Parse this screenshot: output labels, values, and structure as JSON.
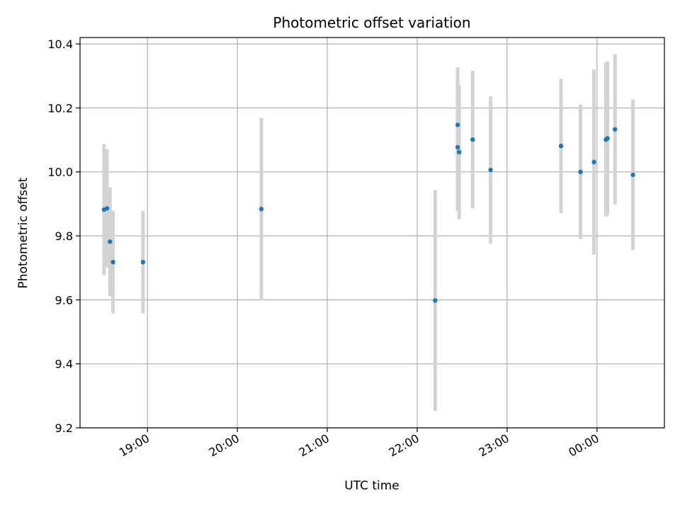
{
  "chart_data": {
    "type": "scatter",
    "title": "Photometric offset variation",
    "xlabel": "UTC time",
    "ylabel": "Photometric offset",
    "x_axis_type": "time",
    "xlim": [
      "18:15",
      "00:45"
    ],
    "ylim": [
      9.2,
      10.42
    ],
    "x_ticks": [
      "19:00",
      "20:00",
      "21:00",
      "22:00",
      "23:00",
      "00:00"
    ],
    "y_ticks": [
      9.2,
      9.4,
      9.6,
      9.8,
      10.0,
      10.2,
      10.4
    ],
    "y_tick_labels": [
      "9.2",
      "9.4",
      "9.6",
      "9.8",
      "10.0",
      "10.2",
      "10.4"
    ],
    "grid": true,
    "point_color": "#1f77b4",
    "errorbar_color": "#d3d3d3",
    "points": [
      {
        "x": "18:31",
        "y": 9.882,
        "err": 0.205
      },
      {
        "x": "18:33",
        "y": 9.886,
        "err": 0.185
      },
      {
        "x": "18:35",
        "y": 9.782,
        "err": 0.17
      },
      {
        "x": "18:37",
        "y": 9.718,
        "err": 0.16
      },
      {
        "x": "18:57",
        "y": 9.718,
        "err": 0.16
      },
      {
        "x": "20:16",
        "y": 9.884,
        "err": 0.285
      },
      {
        "x": "22:12",
        "y": 9.598,
        "err": 0.345
      },
      {
        "x": "22:27",
        "y": 10.147,
        "err": 0.18
      },
      {
        "x": "22:27",
        "y": 10.077,
        "err": 0.2
      },
      {
        "x": "22:28",
        "y": 10.062,
        "err": 0.21
      },
      {
        "x": "22:37",
        "y": 10.101,
        "err": 0.215
      },
      {
        "x": "22:49",
        "y": 10.006,
        "err": 0.23
      },
      {
        "x": "23:36",
        "y": 10.081,
        "err": 0.21
      },
      {
        "x": "23:49",
        "y": 10.0,
        "err": 0.21
      },
      {
        "x": "23:58",
        "y": 10.031,
        "err": 0.29
      },
      {
        "x": "00:06",
        "y": 10.101,
        "err": 0.24
      },
      {
        "x": "00:07",
        "y": 10.105,
        "err": 0.24
      },
      {
        "x": "00:12",
        "y": 10.133,
        "err": 0.235
      },
      {
        "x": "00:24",
        "y": 9.991,
        "err": 0.235
      }
    ]
  }
}
